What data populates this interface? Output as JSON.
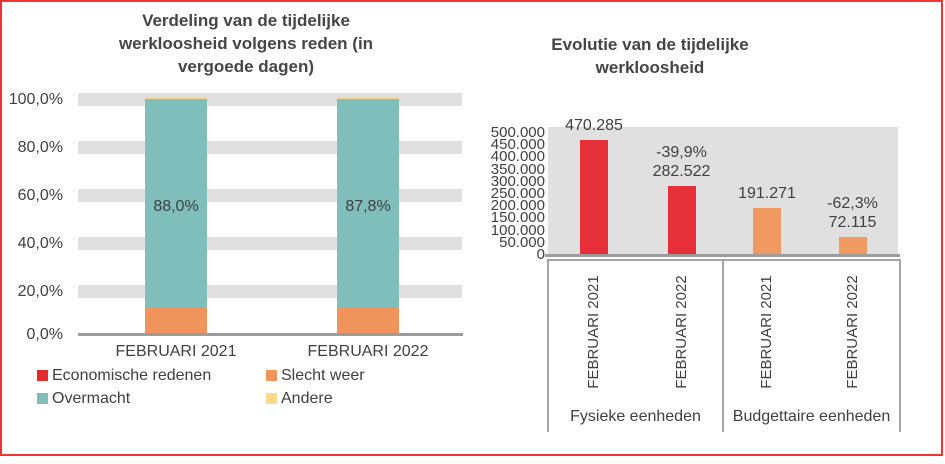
{
  "frame": {
    "border_color": "#f03333"
  },
  "left_chart": {
    "title_lines": [
      "Verdeling van de tijdelijke",
      "werkloosheid volgens reden (in",
      "vergoede dagen)"
    ],
    "y_ticks": [
      "100,0%",
      "80,0%",
      "60,0%",
      "40,0%",
      "20,0%",
      "0,0%"
    ],
    "categories": [
      "FEBRUARI 2021",
      "FEBRUARI 2022"
    ],
    "bar_labels": [
      "88,0%",
      "87,8%"
    ],
    "legend": [
      {
        "label": "Economische redenen",
        "color": "#e32d2d"
      },
      {
        "label": "Slecht weer",
        "color": "#f0945c"
      },
      {
        "label": "Overmacht",
        "color": "#7fbebb"
      },
      {
        "label": "Andere",
        "color": "#fad88d"
      }
    ]
  },
  "right_chart": {
    "title_lines": [
      "Evolutie van de tijdelijke",
      "werkloosheid"
    ],
    "y_ticks": [
      "500.000",
      "450.000",
      "400.000",
      "350.000",
      "300.000",
      "250.000",
      "200.000",
      "150.000",
      "100.000",
      "50.000",
      "0"
    ],
    "group_labels": [
      "Fysieke eenheden",
      "Budgettaire eenheden"
    ]
  },
  "chart_data": [
    {
      "type": "bar",
      "stacked": true,
      "title": "Verdeling van de tijdelijke werkloosheid volgens reden (in vergoede dagen)",
      "categories": [
        "FEBRUARI 2021",
        "FEBRUARI 2022"
      ],
      "unit": "percent",
      "ylim": [
        0,
        100
      ],
      "y_tick_labels": [
        "100,0%",
        "80,0%",
        "60,0%",
        "40,0%",
        "20,0%",
        "0,0%"
      ],
      "legend_position": "bottom",
      "series": [
        {
          "name": "Economische redenen",
          "color": "#e32d2d",
          "values": [
            0.3,
            0.3
          ]
        },
        {
          "name": "Slecht weer",
          "color": "#f0945c",
          "values": [
            10.5,
            11.0
          ]
        },
        {
          "name": "Overmacht",
          "color": "#7fbebb",
          "values": [
            88.0,
            87.8
          ]
        },
        {
          "name": "Andere",
          "color": "#fad88d",
          "values": [
            1.2,
            0.9
          ]
        }
      ],
      "data_labels": {
        "series": "Overmacht",
        "values": [
          "88,0%",
          "87,8%"
        ]
      }
    },
    {
      "type": "bar",
      "title": "Evolutie van de tijdelijke werkloosheid",
      "ylim": [
        0,
        500000
      ],
      "yticks": [
        0,
        50000,
        100000,
        150000,
        200000,
        250000,
        300000,
        350000,
        400000,
        450000,
        500000
      ],
      "groups": [
        "Fysieke eenheden",
        "Budgettaire eenheden"
      ],
      "plot_background": "#e0e0e0",
      "bars": [
        {
          "group": "Fysieke eenheden",
          "category": "FEBRUARI 2021",
          "value": 470285,
          "label_lines": [
            "470.285"
          ],
          "color": "#e5303a"
        },
        {
          "group": "Fysieke eenheden",
          "category": "FEBRUARI 2022",
          "value": 282522,
          "label_lines": [
            "-39,9%",
            "282.522"
          ],
          "color": "#e5303a"
        },
        {
          "group": "Budgettaire eenheden",
          "category": "FEBRUARI 2021",
          "value": 191271,
          "label_lines": [
            "191.271"
          ],
          "color": "#f09a62"
        },
        {
          "group": "Budgettaire eenheden",
          "category": "FEBRUARI 2022",
          "value": 72115,
          "label_lines": [
            "-62,3%",
            "72.115"
          ],
          "color": "#f09a62"
        }
      ]
    }
  ]
}
